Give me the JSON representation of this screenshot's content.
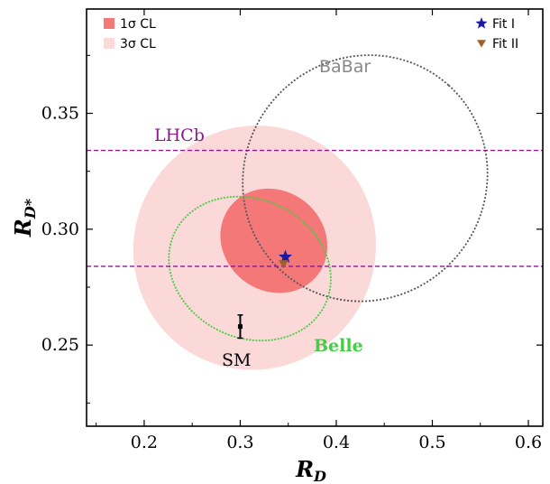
{
  "chart_data": {
    "type": "scatter",
    "xlabel": "R",
    "xlabel_sub": "D",
    "ylabel": "R",
    "ylabel_sub": "D*",
    "xlim": [
      0.14,
      0.615
    ],
    "ylim": [
      0.215,
      0.395
    ],
    "xticks": [
      0.2,
      0.3,
      0.4,
      0.5,
      0.6
    ],
    "xtick_labels": [
      "0.2",
      "0.3",
      "0.4",
      "0.5",
      "0.6"
    ],
    "yticks": [
      0.25,
      0.3,
      0.35
    ],
    "ytick_labels": [
      "0.25",
      "0.30",
      "0.35"
    ],
    "grid": false,
    "legend_left": [
      {
        "label": "1σ CL",
        "color": "#f57878"
      },
      {
        "label": "3σ CL",
        "color": "#fcd9d9"
      }
    ],
    "legend_right": [
      {
        "label": "Fit I",
        "color": "#1a1aa6",
        "marker": "star"
      },
      {
        "label": "Fit II",
        "color": "#a0602a",
        "marker": "triangle-down"
      }
    ],
    "regions": [
      {
        "name": "3σ CL",
        "cx": 0.315,
        "cy": 0.292,
        "rx": 0.128,
        "ry": 0.052,
        "angle": -52,
        "color": "#fcd9d9"
      },
      {
        "name": "1σ CL",
        "cx": 0.335,
        "cy": 0.295,
        "rx": 0.052,
        "ry": 0.024,
        "angle": -52,
        "color": "#f57878"
      }
    ],
    "contours": [
      {
        "label": "BaBar",
        "cx": 0.43,
        "cy": 0.322,
        "rx": 0.13,
        "ry": 0.052,
        "angle": -48,
        "color": "#555555",
        "dash": "2,2"
      },
      {
        "label": "Belle",
        "cx": 0.31,
        "cy": 0.283,
        "rx": 0.072,
        "ry": 0.036,
        "angle": -65,
        "color": "#44cc44",
        "dash": "2,1.5"
      }
    ],
    "lhcb": {
      "label": "LHCb",
      "lines": [
        0.334,
        0.284
      ],
      "color": "#8a1a8a"
    },
    "points": [
      {
        "name": "Fit I",
        "x": 0.347,
        "y": 0.288,
        "marker": "star",
        "color": "#1a1aa6"
      },
      {
        "name": "Fit II",
        "x": 0.345,
        "y": 0.285,
        "marker": "triangle-down",
        "color": "#a0602a"
      }
    ],
    "sm": {
      "label": "SM",
      "x": 0.3,
      "y": 0.258,
      "yerr": 0.005
    }
  }
}
